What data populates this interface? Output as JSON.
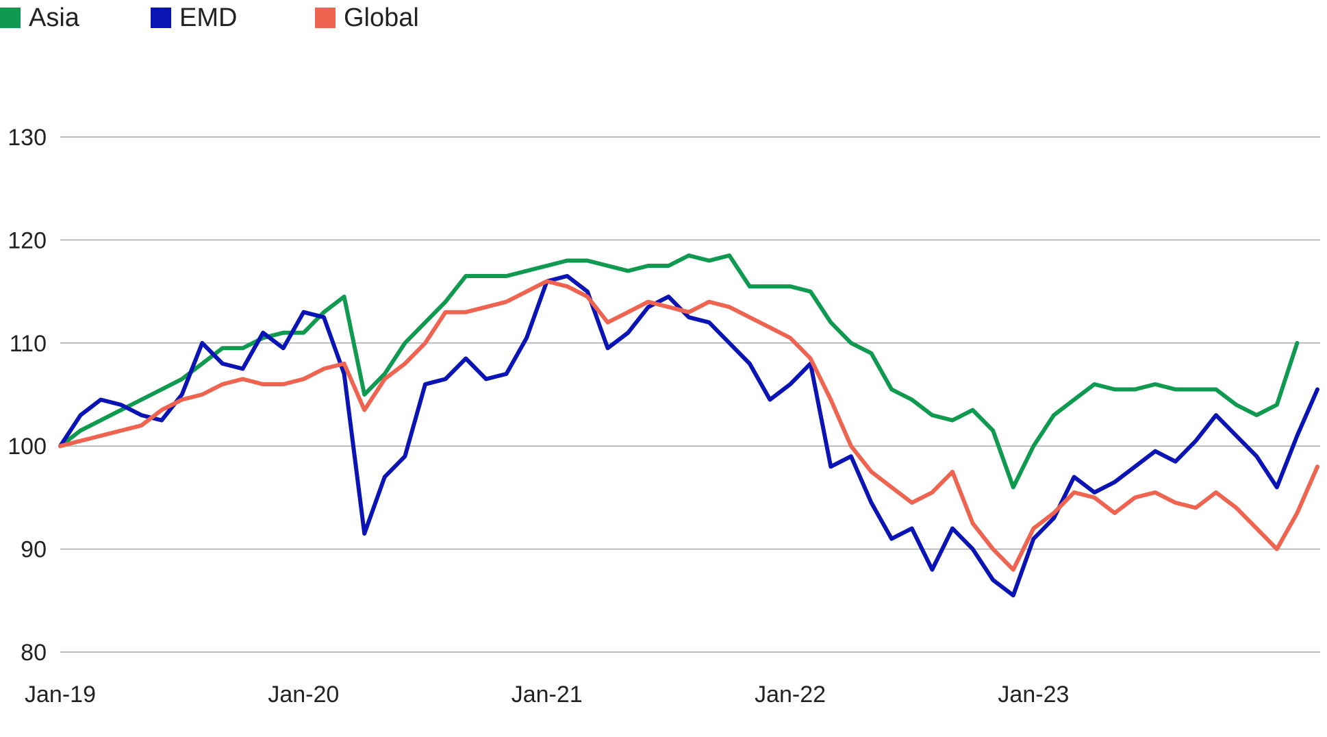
{
  "chart_data": {
    "type": "line",
    "title": "",
    "xlabel": "",
    "ylabel": "",
    "ylim": [
      80,
      130
    ],
    "xlim": [
      "2019-01",
      "2023-12"
    ],
    "y_ticks": [
      "80",
      "90",
      "100",
      "110",
      "120",
      "130"
    ],
    "x_ticks": [
      {
        "label": "Jan-19",
        "x": "2019-01"
      },
      {
        "label": "Jan-20",
        "x": "2020-01"
      },
      {
        "label": "Jan-21",
        "x": "2021-01"
      },
      {
        "label": "Jan-22",
        "x": "2022-01"
      },
      {
        "label": "Jan-23",
        "x": "2023-01"
      }
    ],
    "grid": true,
    "legend_position": "top-left",
    "series": [
      {
        "name": "Asia",
        "color": "#0f9a4f",
        "points": [
          [
            "2019-01",
            100
          ],
          [
            "2019-02",
            101.5
          ],
          [
            "2019-03",
            102.5
          ],
          [
            "2019-04",
            103.5
          ],
          [
            "2019-05",
            104.5
          ],
          [
            "2019-06",
            105.5
          ],
          [
            "2019-07",
            106.5
          ],
          [
            "2019-08",
            108
          ],
          [
            "2019-09",
            109.5
          ],
          [
            "2019-10",
            109.5
          ],
          [
            "2019-11",
            110.5
          ],
          [
            "2019-12",
            111
          ],
          [
            "2020-01",
            111
          ],
          [
            "2020-02",
            113
          ],
          [
            "2020-03",
            114.5
          ],
          [
            "2020-04",
            105
          ],
          [
            "2020-05",
            107
          ],
          [
            "2020-06",
            110
          ],
          [
            "2020-07",
            112
          ],
          [
            "2020-08",
            114
          ],
          [
            "2020-09",
            116.5
          ],
          [
            "2020-10",
            116.5
          ],
          [
            "2020-11",
            116.5
          ],
          [
            "2020-12",
            117
          ],
          [
            "2021-01",
            117.5
          ],
          [
            "2021-02",
            118
          ],
          [
            "2021-03",
            118
          ],
          [
            "2021-04",
            117.5
          ],
          [
            "2021-05",
            117
          ],
          [
            "2021-06",
            117.5
          ],
          [
            "2021-07",
            117.5
          ],
          [
            "2021-08",
            118.5
          ],
          [
            "2021-09",
            118
          ],
          [
            "2021-10",
            118.5
          ],
          [
            "2021-11",
            115.5
          ],
          [
            "2021-12",
            115.5
          ],
          [
            "2022-01",
            115.5
          ],
          [
            "2022-02",
            115
          ],
          [
            "2022-03",
            112
          ],
          [
            "2022-04",
            110
          ],
          [
            "2022-05",
            109
          ],
          [
            "2022-06",
            105.5
          ],
          [
            "2022-07",
            104.5
          ],
          [
            "2022-08",
            103
          ],
          [
            "2022-09",
            102.5
          ],
          [
            "2022-10",
            103.5
          ],
          [
            "2022-11",
            101.5
          ],
          [
            "2022-12",
            96
          ],
          [
            "2023-01",
            100
          ],
          [
            "2023-02",
            103
          ],
          [
            "2023-03",
            104.5
          ],
          [
            "2023-04",
            106
          ],
          [
            "2023-05",
            105.5
          ],
          [
            "2023-06",
            105.5
          ],
          [
            "2023-07",
            106
          ],
          [
            "2023-08",
            105.5
          ],
          [
            "2023-09",
            105.5
          ],
          [
            "2023-10",
            105.5
          ],
          [
            "2023-11",
            104
          ],
          [
            "2023-12",
            103
          ],
          [
            "2024-01",
            104
          ],
          [
            "2024-02",
            110
          ]
        ]
      },
      {
        "name": "EMD",
        "color": "#0a14b5",
        "points": [
          [
            "2019-01",
            100
          ],
          [
            "2019-02",
            103
          ],
          [
            "2019-03",
            104.5
          ],
          [
            "2019-04",
            104
          ],
          [
            "2019-05",
            103
          ],
          [
            "2019-06",
            102.5
          ],
          [
            "2019-07",
            105
          ],
          [
            "2019-08",
            110
          ],
          [
            "2019-09",
            108
          ],
          [
            "2019-10",
            107.5
          ],
          [
            "2019-11",
            111
          ],
          [
            "2019-12",
            109.5
          ],
          [
            "2020-01",
            113
          ],
          [
            "2020-02",
            112.5
          ],
          [
            "2020-03",
            107
          ],
          [
            "2020-04",
            91.5
          ],
          [
            "2020-05",
            97
          ],
          [
            "2020-06",
            99
          ],
          [
            "2020-07",
            106
          ],
          [
            "2020-08",
            106.5
          ],
          [
            "2020-09",
            108.5
          ],
          [
            "2020-10",
            106.5
          ],
          [
            "2020-11",
            107
          ],
          [
            "2020-12",
            110.5
          ],
          [
            "2021-01",
            116
          ],
          [
            "2021-02",
            116.5
          ],
          [
            "2021-03",
            115
          ],
          [
            "2021-04",
            109.5
          ],
          [
            "2021-05",
            111
          ],
          [
            "2021-06",
            113.5
          ],
          [
            "2021-07",
            114.5
          ],
          [
            "2021-08",
            112.5
          ],
          [
            "2021-09",
            112
          ],
          [
            "2021-10",
            110
          ],
          [
            "2021-11",
            108
          ],
          [
            "2021-12",
            104.5
          ],
          [
            "2022-01",
            106
          ],
          [
            "2022-02",
            108
          ],
          [
            "2022-03",
            98
          ],
          [
            "2022-04",
            99
          ],
          [
            "2022-05",
            94.5
          ],
          [
            "2022-06",
            91
          ],
          [
            "2022-07",
            92
          ],
          [
            "2022-08",
            88
          ],
          [
            "2022-09",
            92
          ],
          [
            "2022-10",
            90
          ],
          [
            "2022-11",
            87
          ],
          [
            "2022-12",
            85.5
          ],
          [
            "2023-01",
            91
          ],
          [
            "2023-02",
            93
          ],
          [
            "2023-03",
            97
          ],
          [
            "2023-04",
            95.5
          ],
          [
            "2023-05",
            96.5
          ],
          [
            "2023-06",
            98
          ],
          [
            "2023-07",
            99.5
          ],
          [
            "2023-08",
            98.5
          ],
          [
            "2023-09",
            100.5
          ],
          [
            "2023-10",
            103
          ],
          [
            "2023-11",
            101
          ],
          [
            "2023-12",
            99
          ],
          [
            "2024-01",
            96
          ],
          [
            "2024-02",
            101
          ],
          [
            "2024-03",
            105.5
          ]
        ]
      },
      {
        "name": "Global",
        "color": "#ee6450",
        "points": [
          [
            "2019-01",
            100
          ],
          [
            "2019-02",
            100.5
          ],
          [
            "2019-03",
            101
          ],
          [
            "2019-04",
            101.5
          ],
          [
            "2019-05",
            102
          ],
          [
            "2019-06",
            103.5
          ],
          [
            "2019-07",
            104.5
          ],
          [
            "2019-08",
            105
          ],
          [
            "2019-09",
            106
          ],
          [
            "2019-10",
            106.5
          ],
          [
            "2019-11",
            106
          ],
          [
            "2019-12",
            106
          ],
          [
            "2020-01",
            106.5
          ],
          [
            "2020-02",
            107.5
          ],
          [
            "2020-03",
            108
          ],
          [
            "2020-04",
            103.5
          ],
          [
            "2020-05",
            106.5
          ],
          [
            "2020-06",
            108
          ],
          [
            "2020-07",
            110
          ],
          [
            "2020-08",
            113
          ],
          [
            "2020-09",
            113
          ],
          [
            "2020-10",
            113.5
          ],
          [
            "2020-11",
            114
          ],
          [
            "2020-12",
            115
          ],
          [
            "2021-01",
            116
          ],
          [
            "2021-02",
            115.5
          ],
          [
            "2021-03",
            114.5
          ],
          [
            "2021-04",
            112
          ],
          [
            "2021-05",
            113
          ],
          [
            "2021-06",
            114
          ],
          [
            "2021-07",
            113.5
          ],
          [
            "2021-08",
            113
          ],
          [
            "2021-09",
            114
          ],
          [
            "2021-10",
            113.5
          ],
          [
            "2021-11",
            112.5
          ],
          [
            "2021-12",
            111.5
          ],
          [
            "2022-01",
            110.5
          ],
          [
            "2022-02",
            108.5
          ],
          [
            "2022-03",
            104.5
          ],
          [
            "2022-04",
            100
          ],
          [
            "2022-05",
            97.5
          ],
          [
            "2022-06",
            96
          ],
          [
            "2022-07",
            94.5
          ],
          [
            "2022-08",
            95.5
          ],
          [
            "2022-09",
            97.5
          ],
          [
            "2022-10",
            92.5
          ],
          [
            "2022-11",
            90
          ],
          [
            "2022-12",
            88
          ],
          [
            "2023-01",
            92
          ],
          [
            "2023-02",
            93.5
          ],
          [
            "2023-03",
            95.5
          ],
          [
            "2023-04",
            95
          ],
          [
            "2023-05",
            93.5
          ],
          [
            "2023-06",
            95
          ],
          [
            "2023-07",
            95.5
          ],
          [
            "2023-08",
            94.5
          ],
          [
            "2023-09",
            94
          ],
          [
            "2023-10",
            95.5
          ],
          [
            "2023-11",
            94
          ],
          [
            "2023-12",
            92
          ],
          [
            "2024-01",
            90
          ],
          [
            "2024-02",
            93.5
          ],
          [
            "2024-03",
            98
          ]
        ]
      }
    ]
  }
}
